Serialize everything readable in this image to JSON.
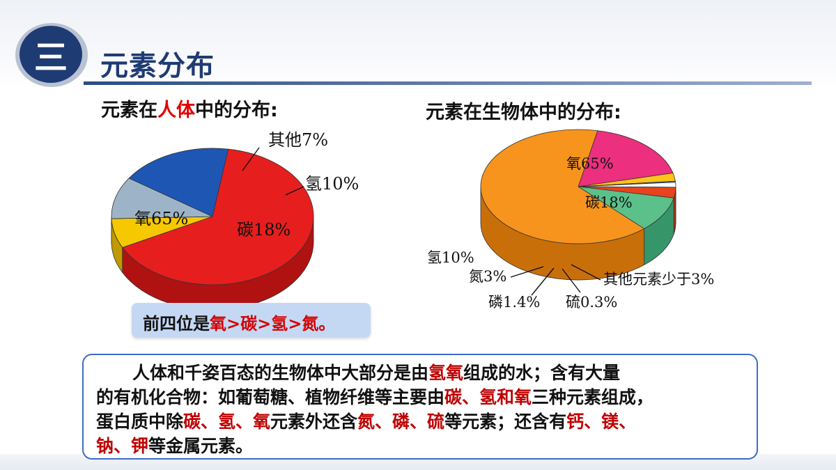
{
  "header": {
    "section_number": "三",
    "title": "元素分布"
  },
  "left": {
    "subtitle_prefix": "元素在",
    "subtitle_highlight": "人体",
    "subtitle_suffix": "中的分布:",
    "note": {
      "prefix": "前四位是",
      "ranking": "氧>碳>氢>氮。"
    }
  },
  "right": {
    "subtitle": "元素在生物体中的分布:"
  },
  "description": {
    "line1": [
      {
        "text": "人体和千姿百态的生物体中大部分是由",
        "red": false
      },
      {
        "text": "氢氧",
        "red": true
      },
      {
        "text": "组成的水；含有大量",
        "red": false
      }
    ],
    "line2": [
      {
        "text": "的有机化合物：如葡萄糖、植物纤维等主要由",
        "red": false
      },
      {
        "text": "碳、氢和氧",
        "red": true
      },
      {
        "text": "三种元素组成，",
        "red": false
      }
    ],
    "line3": [
      {
        "text": "蛋白质中除",
        "red": false
      },
      {
        "text": "碳、氢、氧",
        "red": true
      },
      {
        "text": "元素外还含",
        "red": false
      },
      {
        "text": "氮、磷、硫",
        "red": true
      },
      {
        "text": "等元素；还含有",
        "red": false
      },
      {
        "text": "钙、镁、",
        "red": true
      }
    ],
    "line4": [
      {
        "text": "钠、钾",
        "red": true
      },
      {
        "text": "等金属元素。",
        "red": false
      }
    ]
  },
  "chart_data": [
    {
      "type": "pie",
      "slices": [
        {
          "label": "氧65%",
          "name": "氧",
          "value": 65,
          "color": "#e61e1e",
          "side": "#b01212"
        },
        {
          "label": "碳18%",
          "name": "碳",
          "value": 18,
          "color": "#1e56b4",
          "side": "#123c86"
        },
        {
          "label": "氢10%",
          "name": "氢",
          "value": 10,
          "color": "#9db4c8",
          "side": "#6e8aa2"
        },
        {
          "label": "其他7%",
          "name": "其他",
          "value": 7,
          "color": "#f6c800",
          "side": "#c09a00"
        }
      ]
    },
    {
      "type": "pie",
      "slices": [
        {
          "label": "氧65%",
          "name": "氧",
          "value": 65,
          "color": "#f7941d",
          "side": "#c96f0a"
        },
        {
          "label": "碳18%",
          "name": "碳",
          "value": 18,
          "color": "#ec2f7e",
          "side": "#b81c5c"
        },
        {
          "label": "氢10%",
          "name": "氢",
          "value": 10,
          "color": "#5cc08a",
          "side": "#36966a"
        },
        {
          "label": "氮3%",
          "name": "氮",
          "value": 3,
          "color": "#e8431c",
          "side": "#b22e10"
        },
        {
          "label": "磷1.4%",
          "name": "磷",
          "value": 1.4,
          "color": "#ffffff",
          "side": "#d8d8d8"
        },
        {
          "label": "硫0.3%",
          "name": "硫",
          "value": 0.3,
          "color": "#2f7fd6",
          "side": "#1f5ea6"
        },
        {
          "label": "其他元素少于3%",
          "name": "其他元素",
          "value": 2.3,
          "color": "#ffc21a",
          "side": "#d49a00"
        }
      ]
    }
  ]
}
